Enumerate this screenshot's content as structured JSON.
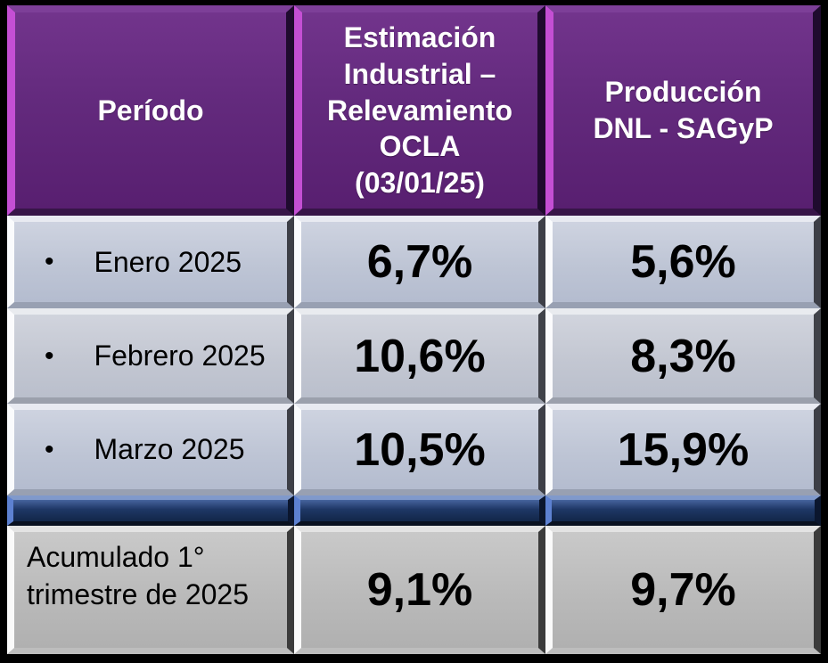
{
  "colors": {
    "background": "#000000",
    "header_purple": "#632a7d",
    "header_bevel_magenta": "#c44fd4",
    "row_blue_gray": "#bec5d5",
    "summary_gray": "#bababa",
    "separator_navy": "#1e3765",
    "header_text": "#ffffff",
    "body_text": "#000000"
  },
  "table": {
    "headers": {
      "periodo": "Período",
      "ocla": "Estimación\nIndustrial –\nRelevamiento\nOCLA\n(03/01/25)",
      "dnl": "Producción\nDNL - SAGyP"
    },
    "rows": [
      {
        "bullet": "•",
        "period": "Enero 2025",
        "ocla": "6,7%",
        "dnl": "5,6%"
      },
      {
        "bullet": "•",
        "period": "Febrero 2025",
        "ocla": "10,6%",
        "dnl": "8,3%"
      },
      {
        "bullet": "•",
        "period": "Marzo 2025",
        "ocla": "10,5%",
        "dnl": "15,9%"
      }
    ],
    "summary": {
      "period": "Acumulado 1°\ntrimestre de 2025",
      "ocla": "9,1%",
      "dnl": "9,7%"
    }
  },
  "chart_data": {
    "type": "table",
    "columns": [
      "Período",
      "Estimación Industrial – Relevamiento OCLA (03/01/25)",
      "Producción DNL - SAGyP"
    ],
    "rows": [
      [
        "Enero 2025",
        "6,7%",
        "5,6%"
      ],
      [
        "Febrero 2025",
        "10,6%",
        "8,3%"
      ],
      [
        "Marzo 2025",
        "10,5%",
        "15,9%"
      ],
      [
        "Acumulado 1° trimestre de 2025",
        "9,1%",
        "9,7%"
      ]
    ],
    "categories": [
      "Enero 2025",
      "Febrero 2025",
      "Marzo 2025",
      "Acumulado 1° trimestre de 2025"
    ],
    "series": [
      {
        "name": "Estimación Industrial – Relevamiento OCLA (03/01/25)",
        "unit": "%",
        "values": [
          6.7,
          10.6,
          10.5,
          9.1
        ]
      },
      {
        "name": "Producción DNL - SAGyP",
        "unit": "%",
        "values": [
          5.6,
          8.3,
          15.9,
          9.7
        ]
      }
    ]
  }
}
